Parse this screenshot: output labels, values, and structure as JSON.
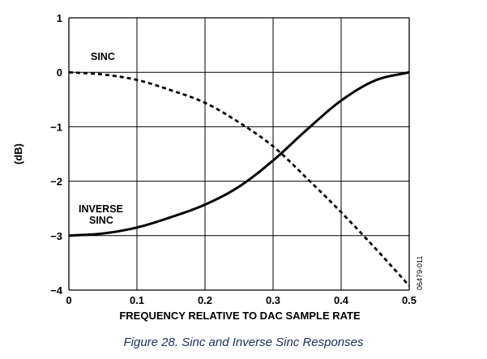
{
  "chart_data": {
    "type": "line",
    "xlabel": "FREQUENCY RELATIVE TO DAC SAMPLE RATE",
    "ylabel": "(dB)",
    "xlim": [
      0,
      0.5
    ],
    "ylim": [
      -4,
      1
    ],
    "xticks": [
      0,
      0.1,
      0.2,
      0.3,
      0.4,
      0.5
    ],
    "xtick_labels": [
      "0",
      "0.1",
      "0.2",
      "0.3",
      "0.4",
      "0.5"
    ],
    "yticks": [
      1,
      0,
      -1,
      -2,
      -3,
      -4
    ],
    "ytick_labels": [
      "1",
      "0",
      "−1",
      "−2",
      "−3",
      "−4"
    ],
    "grid": true,
    "series": [
      {
        "name": "SINC",
        "style": "dashed",
        "x": [
          0,
          0.05,
          0.1,
          0.15,
          0.2,
          0.25,
          0.3,
          0.35,
          0.4,
          0.45,
          0.5
        ],
        "values": [
          0,
          -0.04,
          -0.14,
          -0.33,
          -0.56,
          -0.92,
          -1.36,
          -1.95,
          -2.57,
          -3.23,
          -3.92
        ]
      },
      {
        "name": "INVERSE SINC",
        "style": "solid",
        "x": [
          0,
          0.05,
          0.1,
          0.15,
          0.2,
          0.25,
          0.3,
          0.35,
          0.4,
          0.45,
          0.5
        ],
        "values": [
          -3,
          -2.96,
          -2.85,
          -2.66,
          -2.43,
          -2.1,
          -1.62,
          -1.05,
          -0.52,
          -0.15,
          0
        ]
      }
    ],
    "annotations": {
      "sinc": "SINC",
      "inverse_line1": "INVERSE",
      "inverse_line2": "SINC",
      "figure_id": "06479-011"
    }
  },
  "caption": "Figure 28. Sinc and Inverse Sinc Responses"
}
